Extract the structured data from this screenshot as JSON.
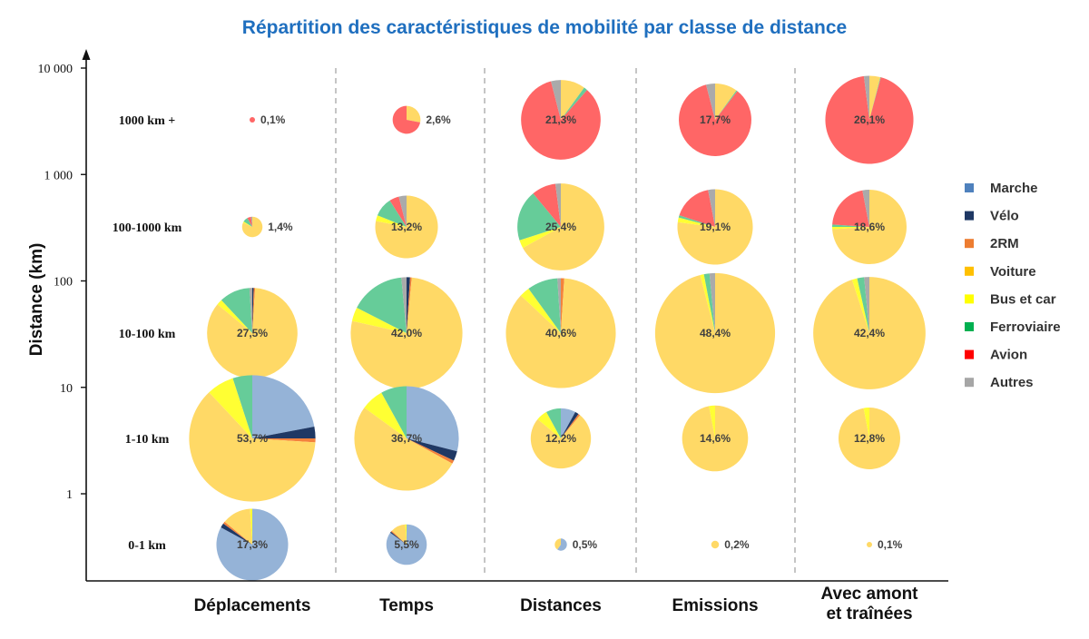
{
  "chart_data": {
    "type": "pie",
    "title": "Répartition des caractéristiques de mobilité par classe de distance",
    "ylabel": "Distance (km)",
    "y_scale": "log",
    "ylim": [
      0.1,
      10000
    ],
    "y_ticks": [
      {
        "value": 10000,
        "label": "10 000"
      },
      {
        "value": 1000,
        "label": "1 000"
      },
      {
        "value": 100,
        "label": "100"
      },
      {
        "value": 10,
        "label": "10"
      },
      {
        "value": 1,
        "label": "1"
      }
    ],
    "distance_classes": [
      "1000 km +",
      "100-1000 km",
      "10-100 km",
      "1-10 km",
      "0-1 km"
    ],
    "indicators": [
      "Déplacements",
      "Temps",
      "Distances",
      "Emissions",
      "Avec amont\net traînées"
    ],
    "legend_position": "right",
    "legend": [
      {
        "name": "Marche",
        "color": "#95b3d7"
      },
      {
        "name": "Vélo",
        "color": "#1f3864"
      },
      {
        "name": "2RM",
        "color": "#f4823c"
      },
      {
        "name": "Voiture",
        "color": "#ffd966"
      },
      {
        "name": "Bus et car",
        "color": "#ffff33"
      },
      {
        "name": "Ferroviaire",
        "color": "#66cc99"
      },
      {
        "name": "Avion",
        "color": "#ff6666"
      },
      {
        "name": "Autres",
        "color": "#aaaaaa"
      }
    ],
    "legend_swatch_colors": [
      "#4f81bd",
      "#1f3864",
      "#ed7d31",
      "#ffc000",
      "#ffff00",
      "#00b050",
      "#ff0000",
      "#a6a6a6"
    ],
    "pies": [
      [
        {
          "label": "0,1%",
          "share": 0.1,
          "slices": [
            0,
            0,
            0,
            0,
            0,
            0,
            100,
            0
          ]
        },
        {
          "label": "2,6%",
          "share": 2.6,
          "slices": [
            0,
            0,
            0,
            28,
            0,
            0,
            72,
            0
          ]
        },
        {
          "label": "21,3%",
          "share": 21.3,
          "slices": [
            0,
            0,
            0,
            10,
            0,
            1.5,
            84.5,
            4
          ]
        },
        {
          "label": "17,7%",
          "share": 17.7,
          "slices": [
            0,
            0,
            0,
            10,
            0,
            0.5,
            85.5,
            4
          ]
        },
        {
          "label": "26,1%",
          "share": 26.1,
          "slices": [
            0,
            0,
            0,
            4,
            0,
            0.2,
            93.8,
            2
          ]
        }
      ],
      [
        {
          "label": "1,4%",
          "share": 1.4,
          "slices": [
            0,
            0,
            0,
            82,
            2,
            8,
            6,
            2
          ]
        },
        {
          "label": "13,2%",
          "share": 13.2,
          "slices": [
            0,
            0,
            0,
            78,
            3,
            10,
            5,
            4
          ]
        },
        {
          "label": "25,4%",
          "share": 25.4,
          "slices": [
            0,
            0,
            0,
            67,
            3,
            19,
            9,
            2
          ]
        },
        {
          "label": "19,1%",
          "share": 19.1,
          "slices": [
            0,
            0,
            0,
            77,
            2,
            1,
            17,
            3
          ]
        },
        {
          "label": "18,6%",
          "share": 18.6,
          "slices": [
            0,
            0,
            0,
            74,
            1,
            1,
            21,
            3
          ]
        }
      ],
      [
        {
          "label": "27,5%",
          "share": 27.5,
          "slices": [
            0,
            0.5,
            0.5,
            85,
            2,
            11,
            0,
            1
          ]
        },
        {
          "label": "42,0%",
          "share": 42.0,
          "slices": [
            0,
            1,
            0.5,
            77,
            4,
            16,
            0,
            1.5
          ]
        },
        {
          "label": "40,6%",
          "share": 40.6,
          "slices": [
            0,
            0,
            1,
            86,
            3,
            9,
            0,
            1
          ]
        },
        {
          "label": "48,4%",
          "share": 48.4,
          "slices": [
            0,
            0,
            0,
            96,
            1,
            1.5,
            0,
            1.5
          ]
        },
        {
          "label": "42,4%",
          "share": 42.4,
          "slices": [
            0,
            0,
            0,
            95,
            1.5,
            2,
            0,
            1.5
          ]
        }
      ],
      [
        {
          "label": "53,7%",
          "share": 53.7,
          "slices": [
            22,
            3,
            1,
            62,
            7,
            5,
            0,
            0
          ]
        },
        {
          "label": "36,7%",
          "share": 36.7,
          "slices": [
            29,
            3,
            1,
            52,
            7,
            8,
            0,
            0
          ]
        },
        {
          "label": "12,2%",
          "share": 12.2,
          "slices": [
            8,
            2,
            1,
            75,
            6,
            8,
            0,
            0
          ]
        },
        {
          "label": "14,6%",
          "share": 14.6,
          "slices": [
            0,
            0,
            0,
            97,
            3,
            0,
            0,
            0
          ]
        },
        {
          "label": "12,8%",
          "share": 12.8,
          "slices": [
            0,
            0,
            0,
            97,
            3,
            0,
            0,
            0
          ]
        }
      ],
      [
        {
          "label": "17,3%",
          "share": 17.3,
          "slices": [
            83,
            2,
            1,
            13,
            1,
            0,
            0,
            0
          ]
        },
        {
          "label": "5,5%",
          "share": 5.5,
          "slices": [
            85,
            1,
            1,
            12,
            1,
            0,
            0,
            0
          ]
        },
        {
          "label": "0,5%",
          "share": 0.5,
          "slices": [
            60,
            0,
            0,
            40,
            0,
            0,
            0,
            0
          ]
        },
        {
          "label": "0,2%",
          "share": 0.2,
          "slices": [
            0,
            0,
            0,
            100,
            0,
            0,
            0,
            0
          ]
        },
        {
          "label": "0,1%",
          "share": 0.1,
          "slices": [
            0,
            0,
            0,
            100,
            0,
            0,
            0,
            0
          ]
        }
      ]
    ]
  }
}
